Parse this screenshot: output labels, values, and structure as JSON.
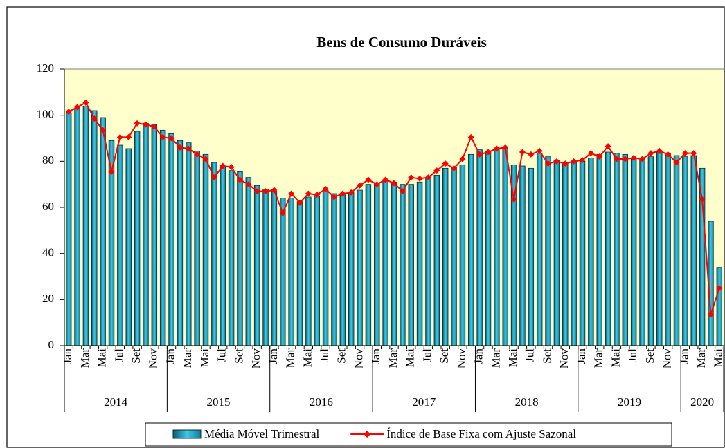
{
  "chart_data": {
    "type": "combo",
    "title": "Bens de Consumo Duráveis",
    "category_groups": [
      {
        "label": "2014",
        "categories": [
          "Jan",
          null,
          "Mar",
          null,
          "Mai",
          null,
          "Jul",
          null,
          "Set",
          null,
          "Nov",
          null
        ]
      },
      {
        "label": "2015",
        "categories": [
          "Jan",
          null,
          "Mar",
          null,
          "Mai",
          null,
          "Jul",
          null,
          "Set",
          null,
          "Nov",
          null
        ]
      },
      {
        "label": "2016",
        "categories": [
          "Jan",
          null,
          "Mar",
          null,
          "Mai",
          null,
          "Jul",
          null,
          "Set",
          null,
          "Nov",
          null
        ]
      },
      {
        "label": "2017",
        "categories": [
          "Jan",
          null,
          "Mar",
          null,
          "Mai",
          null,
          "Jul",
          null,
          "Set",
          null,
          "Nov",
          null
        ]
      },
      {
        "label": "2018",
        "categories": [
          "Jan",
          null,
          "Mar",
          null,
          "Mai",
          null,
          "Jul",
          null,
          "Set",
          null,
          "Nov",
          null
        ]
      },
      {
        "label": "2019",
        "categories": [
          "Jan",
          null,
          "Mar",
          null,
          "Mai",
          null,
          "Jul",
          null,
          "Set",
          null,
          "Nov",
          null
        ]
      },
      {
        "label": "2020",
        "categories": [
          "Jan",
          null,
          "Mar",
          null,
          "Mai"
        ]
      }
    ],
    "series": [
      {
        "name": "Média Móvel Trimestral",
        "type": "bar",
        "color": "#1fa3c4",
        "values": [
          101,
          103,
          104,
          102,
          99,
          89,
          87,
          85.5,
          93,
          96.5,
          96,
          93.5,
          92,
          89,
          88,
          84.5,
          83,
          79.5,
          77.5,
          76,
          75.5,
          73,
          69.5,
          68,
          67,
          64,
          64,
          62.5,
          64.5,
          65,
          67.5,
          66,
          65.5,
          66.5,
          67.5,
          70,
          70.5,
          71.5,
          71,
          70,
          70,
          71,
          73,
          74,
          77,
          77.5,
          78.5,
          83,
          85,
          84.5,
          85,
          86,
          78.5,
          78,
          77,
          83.5,
          82,
          80.5,
          79.5,
          79.5,
          80,
          81.5,
          83,
          84,
          83.5,
          83,
          81.5,
          81.5,
          82,
          84,
          83.5,
          82.5,
          82,
          82.5,
          77,
          54,
          34
        ]
      },
      {
        "name": "Índice de Base Fixa com Ajuste Sazonal",
        "type": "line",
        "color": "#ff0000",
        "values": [
          101.5,
          103.5,
          105.5,
          98.5,
          93.5,
          75.5,
          90.5,
          90.5,
          96.5,
          96,
          95,
          90.5,
          90,
          86,
          85.5,
          83,
          81,
          73,
          78,
          77.5,
          72,
          70,
          67,
          67,
          67.5,
          57.5,
          66,
          62,
          66,
          65.5,
          68,
          64.5,
          66,
          66.5,
          69.5,
          72,
          70,
          72,
          70.5,
          67,
          73,
          72.5,
          73,
          76,
          79,
          77,
          81,
          90.5,
          83,
          84,
          85.5,
          86,
          63.5,
          84,
          83,
          84.5,
          79,
          80,
          79,
          80,
          80.5,
          83.5,
          82,
          86.5,
          81,
          81,
          81.5,
          81,
          83.5,
          84.5,
          83,
          79.5,
          83.5,
          83.5,
          63.5,
          13.5,
          25
        ]
      }
    ],
    "ylim": [
      0,
      120
    ],
    "yticks": [
      0,
      20,
      40,
      60,
      80,
      100,
      120
    ],
    "grid": false,
    "legend": "bottom",
    "plot_background": "#ffffcc"
  }
}
